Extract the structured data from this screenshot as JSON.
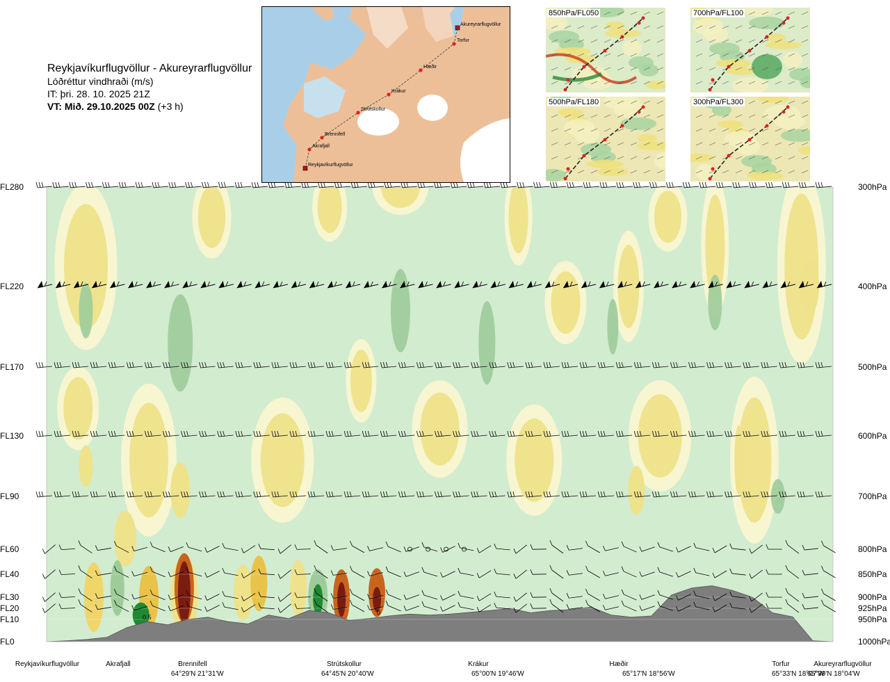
{
  "header": {
    "title": "Reykjavíkurflugvöllur - Akureyrarflugvöllur",
    "subtitle": "Lóðréttur vindhraði (m/s)",
    "issue_time": "IT: þri. 28. 10. 2025 21Z",
    "valid_time_bold": "VT: Mið. 29.10.2025 00Z",
    "valid_time_offset": "(+3 h)"
  },
  "map": {
    "route_points": [
      {
        "name": "Akureyrarflugvöllur"
      },
      {
        "name": "Torfur"
      },
      {
        "name": "Hæðir"
      },
      {
        "name": "Krákur"
      },
      {
        "name": "Strútskollur"
      },
      {
        "name": "Brennifell"
      },
      {
        "name": "Akrafjall"
      },
      {
        "name": "Reykjavíkurflugvöllur"
      }
    ]
  },
  "thumbnails": [
    {
      "label": "850hPa/FL050"
    },
    {
      "label": "700hPa/FL100"
    },
    {
      "label": "500hPa/FL180"
    },
    {
      "label": "300hPa/FL300"
    }
  ],
  "chart_data": {
    "type": "heatmap",
    "title": "Reykjavíkurflugvöllur - Akureyrarflugvöllur",
    "subtitle": "Lóðréttur vindhraði (m/s)",
    "flight_levels": [
      "FL280",
      "FL220",
      "FL170",
      "FL130",
      "FL90",
      "FL60",
      "FL40",
      "FL30",
      "FL20",
      "FL10",
      "FL0"
    ],
    "pressure_levels": [
      "300hPa",
      "400hPa",
      "500hPa",
      "600hPa",
      "700hPa",
      "800hPa",
      "850hPa",
      "900hPa",
      "925hPa",
      "950hPa",
      "1000hPa"
    ],
    "pressure_values_hpa": [
      300,
      400,
      500,
      600,
      700,
      800,
      850,
      900,
      925,
      950,
      1000
    ],
    "x_range": [
      0,
      1
    ],
    "waypoints": [
      {
        "name": "Reykjavíkurflugvöllur",
        "coord": "",
        "position": 0.0
      },
      {
        "name": "Akrafjall",
        "coord": "",
        "position": 0.09
      },
      {
        "name": "Brennifell",
        "coord": "64°29'N 21°31'W",
        "position": 0.18
      },
      {
        "name": "Strútskollur",
        "coord": "64°45'N 20°40'W",
        "position": 0.378
      },
      {
        "name": "Krákur",
        "coord": "65°00'N 19°46'W",
        "position": 0.547
      },
      {
        "name": "Hæðir",
        "coord": "65°17'N 18°56'W",
        "position": 0.727
      },
      {
        "name": "Torfur",
        "coord": "65°33'N 18°07'W",
        "position": 0.928
      },
      {
        "name": "Akureyrarflugvöllur",
        "coord": "65°39'N 18°04'W",
        "position": 0.98
      }
    ],
    "contour_labels": [
      {
        "text": "0.5",
        "x": 0.122,
        "p": 950
      },
      {
        "text": "0",
        "x": 0.42,
        "p": 940
      }
    ],
    "terrain_pressure_hpa": [
      1000,
      998,
      995,
      990,
      968,
      955,
      962,
      950,
      945,
      955,
      960,
      940,
      948,
      930,
      935,
      952,
      948,
      942,
      938,
      940,
      938,
      934,
      930,
      925,
      935,
      930,
      928,
      922,
      940,
      945,
      942,
      895,
      880,
      875,
      885,
      900,
      935,
      944,
      998,
      1000
    ],
    "fields": {
      "strong_updraft_color": "#7a1c10",
      "updraft_color": "#c8641c",
      "weak_updraft_color": "#eee28a",
      "neutral_color": "#f7f6d0",
      "weak_downdraft_color": "#d2ecd0",
      "downdraft_color": "#9dcc9a",
      "strong_downdraft_color": "#1e8a32",
      "terrain_color": "#7e7e7e"
    },
    "grid": true
  }
}
